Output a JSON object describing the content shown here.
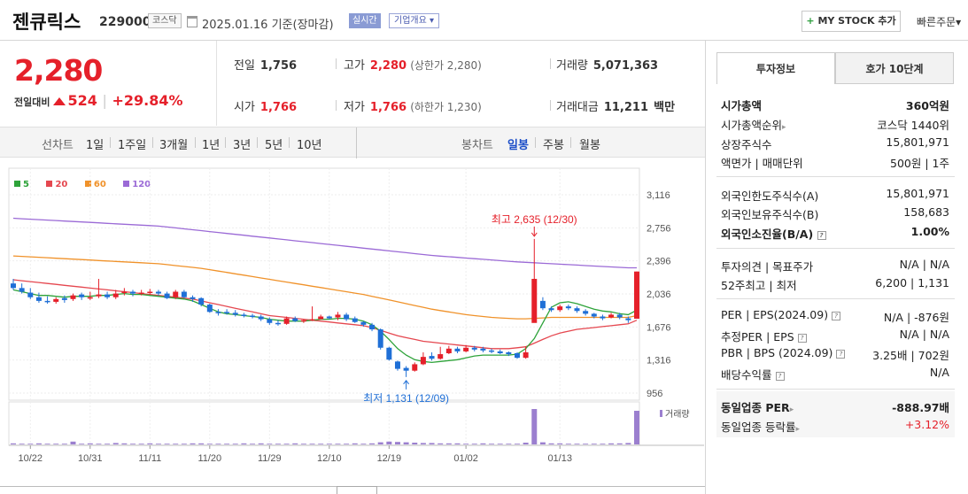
{
  "header": {
    "name": "젠큐릭스",
    "code": "229000",
    "market": "코스닥",
    "date": "2025.01.16",
    "basis": "기준(장마감)",
    "live": "실시간",
    "company_info": "기업개요",
    "company_info_arrow": "▾",
    "mystock_plus": "+",
    "mystock": "MY STOCK 추가",
    "quick_order": "빠른주문",
    "quick_arrow": "▾"
  },
  "quote": {
    "price": "2,280",
    "change_label": "전일대비",
    "change": "524",
    "change_pct": "+29.84%",
    "prev_close_label": "전일",
    "prev_close": "1,756",
    "high_label": "고가",
    "high": "2,280",
    "upper_limit": "(상한가 2,280)",
    "volume_label": "거래량",
    "volume": "5,071,363",
    "open_label": "시가",
    "open": "1,766",
    "low_label": "저가",
    "low": "1,766",
    "lower_limit": "(하한가 1,230)",
    "trade_value_label": "거래대금",
    "trade_value": "11,211",
    "trade_value_unit": "백만"
  },
  "periods": {
    "line_label": "선차트",
    "items": [
      "1일",
      "1주일",
      "3개월",
      "1년",
      "3년",
      "5년",
      "10년"
    ],
    "candle_label": "봉차트",
    "candle_items": [
      "일봉",
      "주봉",
      "월봉"
    ],
    "selected": "일봉"
  },
  "chart_data": {
    "type": "candlestick",
    "ma_legend": [
      {
        "name": "5",
        "color": "#2ea33a"
      },
      {
        "name": "20",
        "color": "#e5474f"
      },
      {
        "name": "60",
        "color": "#f0922a"
      },
      {
        "name": "120",
        "color": "#9b6ad6"
      }
    ],
    "y_ticks": [
      "3,116",
      "2,756",
      "2,396",
      "2,036",
      "1,676",
      "1,316",
      "956"
    ],
    "x_ticks": [
      "10/22",
      "10/31",
      "11/11",
      "11/20",
      "11/29",
      "12/10",
      "12/19",
      "01/02",
      "01/13"
    ],
    "high_annotation": "최고 2,635 (12/30)",
    "low_annotation": "최저 1,131 (12/09)",
    "volume_label": "거래량",
    "candles": [
      [
        2150,
        2100,
        2200,
        2080
      ],
      [
        2100,
        2060,
        2150,
        2040
      ],
      [
        2050,
        2000,
        2100,
        1980
      ],
      [
        2000,
        1960,
        2050,
        1940
      ],
      [
        1960,
        1950,
        2010,
        1930
      ],
      [
        1950,
        1980,
        2000,
        1930
      ],
      [
        1990,
        1970,
        2020,
        1940
      ],
      [
        1980,
        2020,
        2040,
        1960
      ],
      [
        2030,
        2000,
        2050,
        1970
      ],
      [
        2000,
        2000,
        2060,
        1970
      ],
      [
        2010,
        2030,
        2200,
        1990
      ],
      [
        2030,
        2000,
        2060,
        1980
      ],
      [
        2000,
        2040,
        2080,
        1980
      ],
      [
        2050,
        2060,
        2100,
        2020
      ],
      [
        2060,
        2040,
        2080,
        2010
      ],
      [
        2040,
        2050,
        2080,
        2020
      ],
      [
        2050,
        2060,
        2090,
        2030
      ],
      [
        2060,
        2040,
        2080,
        2020
      ],
      [
        2040,
        1990,
        2060,
        1980
      ],
      [
        2000,
        2060,
        2080,
        1980
      ],
      [
        2060,
        2000,
        2080,
        1990
      ],
      [
        2000,
        1980,
        2020,
        1950
      ],
      [
        1990,
        1920,
        2000,
        1900
      ],
      [
        1920,
        1840,
        1930,
        1830
      ],
      [
        1840,
        1830,
        1870,
        1800
      ],
      [
        1840,
        1830,
        1870,
        1810
      ],
      [
        1830,
        1810,
        1860,
        1790
      ],
      [
        1810,
        1800,
        1830,
        1780
      ],
      [
        1800,
        1790,
        1820,
        1770
      ],
      [
        1790,
        1760,
        1810,
        1740
      ],
      [
        1760,
        1720,
        1780,
        1700
      ],
      [
        1720,
        1710,
        1750,
        1690
      ],
      [
        1710,
        1770,
        1790,
        1700
      ],
      [
        1770,
        1740,
        1790,
        1730
      ],
      [
        1740,
        1750,
        1760,
        1720
      ],
      [
        1760,
        1760,
        1900,
        1740
      ],
      [
        1760,
        1790,
        1810,
        1760
      ],
      [
        1790,
        1770,
        1800,
        1760
      ],
      [
        1780,
        1810,
        1840,
        1750
      ],
      [
        1810,
        1760,
        1830,
        1740
      ],
      [
        1770,
        1730,
        1790,
        1720
      ],
      [
        1730,
        1700,
        1740,
        1680
      ],
      [
        1700,
        1650,
        1720,
        1630
      ],
      [
        1650,
        1450,
        1660,
        1430
      ],
      [
        1450,
        1320,
        1460,
        1310
      ],
      [
        1300,
        1220,
        1310,
        1200
      ],
      [
        1230,
        1200,
        1250,
        1131
      ],
      [
        1200,
        1270,
        1290,
        1190
      ],
      [
        1270,
        1350,
        1400,
        1260
      ],
      [
        1360,
        1330,
        1400,
        1310
      ],
      [
        1330,
        1380,
        1460,
        1320
      ],
      [
        1390,
        1440,
        1470,
        1380
      ],
      [
        1440,
        1410,
        1460,
        1390
      ],
      [
        1410,
        1450,
        1480,
        1400
      ],
      [
        1450,
        1430,
        1470,
        1410
      ],
      [
        1440,
        1420,
        1460,
        1400
      ],
      [
        1420,
        1410,
        1440,
        1390
      ],
      [
        1410,
        1390,
        1430,
        1380
      ],
      [
        1400,
        1380,
        1410,
        1360
      ],
      [
        1390,
        1340,
        1400,
        1330
      ],
      [
        1340,
        1400,
        1460,
        1330
      ],
      [
        1720,
        2200,
        2635,
        1950
      ],
      [
        1960,
        1880,
        2000,
        1860
      ],
      [
        1880,
        1860,
        1900,
        1840
      ],
      [
        1860,
        1900,
        1920,
        1840
      ],
      [
        1900,
        1880,
        1920,
        1860
      ],
      [
        1880,
        1850,
        1900,
        1830
      ],
      [
        1850,
        1820,
        1870,
        1800
      ],
      [
        1820,
        1790,
        1830,
        1770
      ],
      [
        1790,
        1770,
        1810,
        1750
      ],
      [
        1780,
        1810,
        1830,
        1770
      ],
      [
        1810,
        1780,
        1830,
        1760
      ],
      [
        1770,
        1750,
        1790,
        1720
      ],
      [
        1766,
        2280,
        2280,
        1766
      ]
    ],
    "ma5": [
      2080,
      2060,
      2040,
      2020,
      2020,
      2010,
      2000,
      2010,
      2010,
      2010,
      2020,
      2020,
      2030,
      2040,
      2030,
      2030,
      2020,
      2010,
      2000,
      1990,
      1980,
      1960,
      1920,
      1880,
      1840,
      1820,
      1810,
      1800,
      1790,
      1780,
      1760,
      1750,
      1740,
      1740,
      1740,
      1750,
      1760,
      1760,
      1770,
      1770,
      1760,
      1740,
      1700,
      1630,
      1540,
      1440,
      1370,
      1320,
      1300,
      1290,
      1300,
      1310,
      1320,
      1340,
      1360,
      1370,
      1370,
      1370,
      1370,
      1380,
      1440,
      1550,
      1720,
      1890,
      1940,
      1950,
      1930,
      1900,
      1870,
      1850,
      1840,
      1820,
      1810,
      1860
    ],
    "ma20": [
      2190,
      2180,
      2170,
      2160,
      2150,
      2140,
      2130,
      2120,
      2110,
      2100,
      2090,
      2080,
      2070,
      2060,
      2050,
      2040,
      2030,
      2020,
      2010,
      2000,
      1990,
      1980,
      1960,
      1940,
      1920,
      1900,
      1880,
      1860,
      1840,
      1820,
      1800,
      1790,
      1780,
      1770,
      1760,
      1750,
      1740,
      1730,
      1720,
      1710,
      1700,
      1690,
      1670,
      1640,
      1610,
      1580,
      1560,
      1540,
      1520,
      1510,
      1500,
      1490,
      1480,
      1470,
      1460,
      1450,
      1440,
      1440,
      1440,
      1450,
      1460,
      1500,
      1540,
      1580,
      1610,
      1630,
      1650,
      1660,
      1670,
      1680,
      1690,
      1700,
      1710,
      1750
    ],
    "ma60": [
      2450,
      2445,
      2440,
      2435,
      2430,
      2425,
      2420,
      2415,
      2410,
      2405,
      2400,
      2395,
      2390,
      2385,
      2380,
      2375,
      2370,
      2365,
      2355,
      2345,
      2335,
      2325,
      2315,
      2300,
      2285,
      2270,
      2255,
      2240,
      2225,
      2210,
      2195,
      2180,
      2165,
      2150,
      2135,
      2120,
      2105,
      2090,
      2075,
      2060,
      2045,
      2030,
      2010,
      1990,
      1970,
      1950,
      1930,
      1910,
      1890,
      1870,
      1855,
      1840,
      1825,
      1810,
      1800,
      1790,
      1780,
      1775,
      1770,
      1765,
      1765,
      1770,
      1775,
      1780,
      1780,
      1780,
      1780,
      1780,
      1780,
      1780,
      1780,
      1780,
      1780,
      1800
    ],
    "ma120": [
      2860,
      2855,
      2850,
      2845,
      2840,
      2835,
      2830,
      2825,
      2820,
      2815,
      2810,
      2805,
      2800,
      2795,
      2790,
      2785,
      2780,
      2775,
      2765,
      2755,
      2745,
      2735,
      2725,
      2715,
      2705,
      2695,
      2685,
      2675,
      2665,
      2655,
      2645,
      2635,
      2625,
      2615,
      2605,
      2595,
      2585,
      2575,
      2565,
      2555,
      2545,
      2535,
      2525,
      2515,
      2505,
      2495,
      2485,
      2475,
      2465,
      2455,
      2448,
      2441,
      2434,
      2427,
      2420,
      2413,
      2406,
      2399,
      2392,
      2385,
      2380,
      2375,
      2370,
      2365,
      2360,
      2355,
      2350,
      2345,
      2340,
      2335,
      2330,
      2325,
      2320,
      2320
    ],
    "volumes": [
      3,
      2,
      2,
      3,
      2,
      2,
      2,
      8,
      2,
      3,
      2,
      2,
      4,
      3,
      2,
      2,
      3,
      2,
      2,
      2,
      2,
      3,
      3,
      2,
      2,
      2,
      2,
      3,
      2,
      3,
      2,
      2,
      2,
      3,
      2,
      2,
      2,
      2,
      2,
      2,
      3,
      2,
      3,
      6,
      8,
      7,
      6,
      5,
      4,
      4,
      3,
      3,
      3,
      2,
      2,
      3,
      2,
      2,
      2,
      2,
      5,
      100,
      6,
      3,
      3,
      2,
      2,
      2,
      2,
      2,
      3,
      3,
      4,
      95
    ]
  },
  "panel": {
    "tab_invest": "투자정보",
    "tab_quote": "호가 10단계",
    "market_cap_label": "시가총액",
    "market_cap": "360억원",
    "market_cap_rank_label": "시가총액순위",
    "market_cap_rank": "코스닥 1440위",
    "listed_shares_label": "상장주식수",
    "listed_shares": "15,801,971",
    "face_value_label": "액면가 | 매매단위",
    "face_value": "500원 | 1주",
    "foreign_limit_label": "외국인한도주식수(A)",
    "foreign_limit": "15,801,971",
    "foreign_hold_label": "외국인보유주식수(B)",
    "foreign_hold": "158,683",
    "foreign_ratio_label": "외국인소진율(B/A)",
    "foreign_ratio": "1.00%",
    "opinion_label": "투자의견 | 목표주가",
    "opinion": "N/A | N/A",
    "week52_label": "52주최고 | 최저",
    "week52": "6,200 | 1,131",
    "per_label": "PER | EPS(2024.09)",
    "per": "N/A | -876원",
    "est_per_label": "추정PER | EPS",
    "est_per": "N/A | N/A",
    "pbr_label": "PBR | BPS (2024.09)",
    "pbr": "3.25배 | 702원",
    "dividend_label": "배당수익률",
    "dividend": "N/A",
    "sector_per_label": "동일업종 PER",
    "sector_per": "-888.97배",
    "sector_change_label": "동일업종 등락률",
    "sector_change": "+3.12%"
  },
  "colors": {
    "up": "#e5202a",
    "down": "#1f6fd6",
    "accent": "#1d4fc8"
  }
}
